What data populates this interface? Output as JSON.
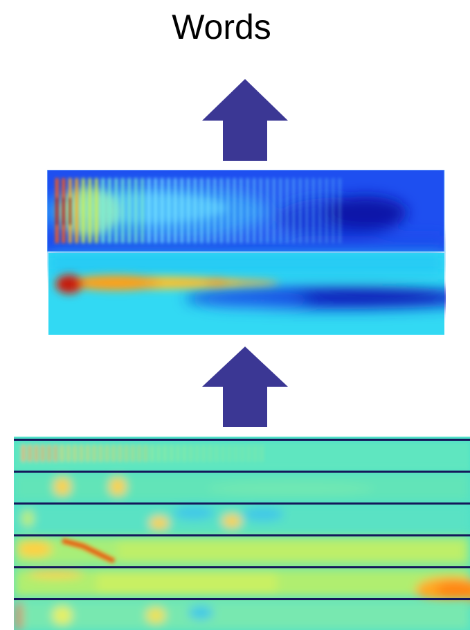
{
  "title": "Words",
  "colors": {
    "arrow": "#3b3794",
    "divider": "#14185a",
    "colormap": "jet"
  },
  "panels": {
    "middle": {
      "count": 2,
      "labels": []
    },
    "bottom": {
      "count": 6,
      "labels": []
    }
  }
}
